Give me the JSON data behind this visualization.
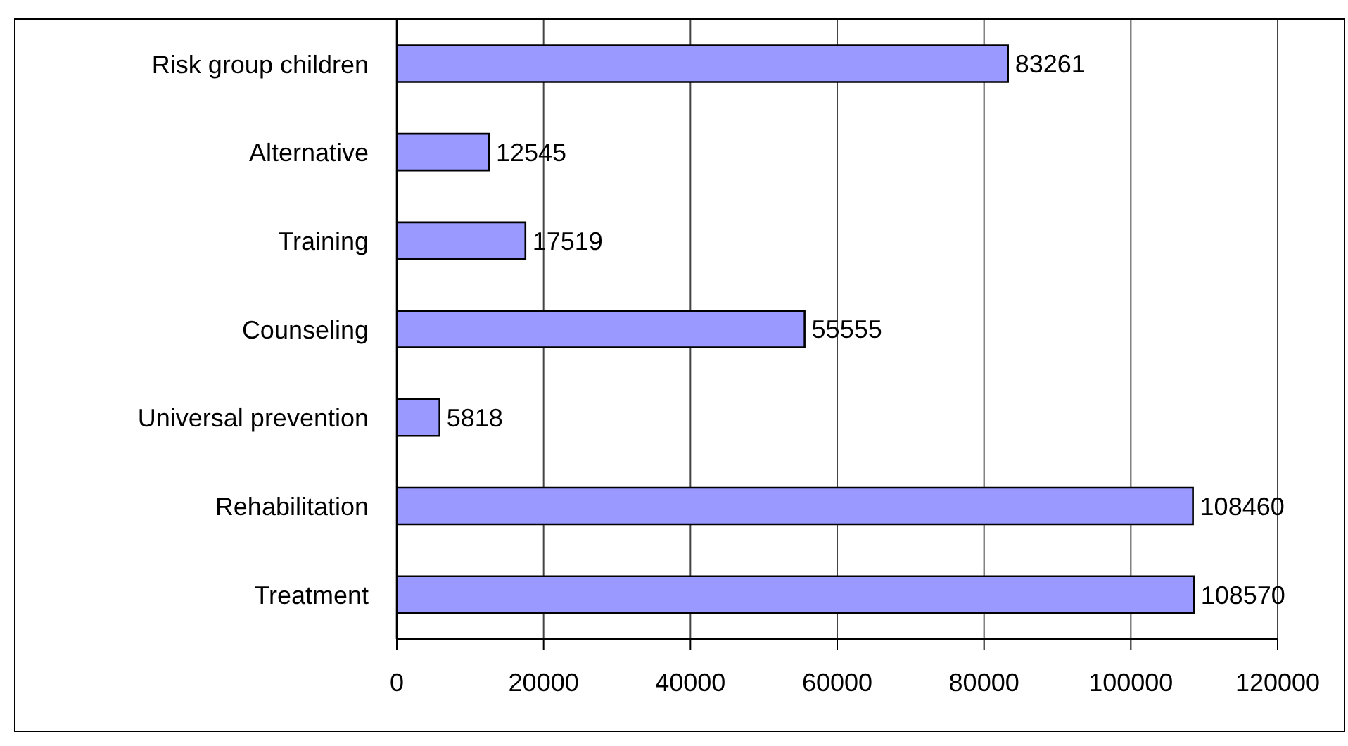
{
  "chart_data": {
    "type": "bar",
    "orientation": "horizontal",
    "categories": [
      "Risk group children",
      "Alternative",
      "Training",
      "Counseling",
      "Universal prevention",
      "Rehabilitation",
      "Treatment"
    ],
    "values": [
      83261,
      12545,
      17519,
      55555,
      5818,
      108460,
      108570
    ],
    "color": "#9999ff",
    "xlim": [
      0,
      120000
    ],
    "xticks": [
      0,
      20000,
      40000,
      60000,
      80000,
      100000,
      120000
    ],
    "grid": "x",
    "data_labels": true
  }
}
